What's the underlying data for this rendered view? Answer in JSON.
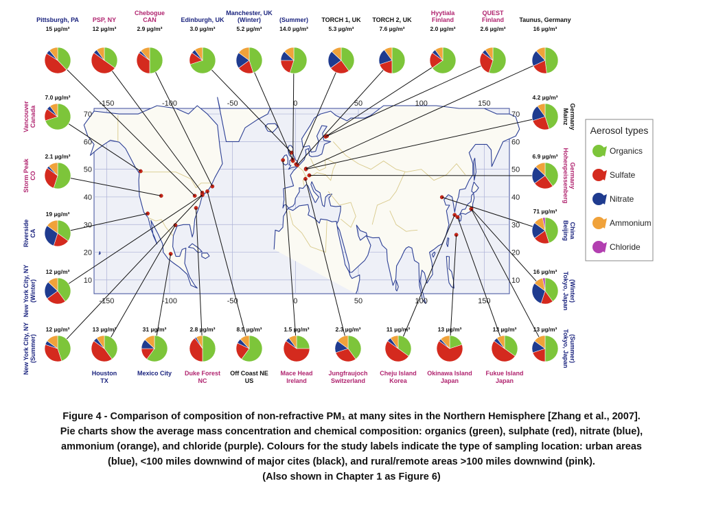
{
  "colors": {
    "organics": "#7dc53a",
    "sulfate": "#d42a1e",
    "nitrate": "#1f3b8f",
    "ammonium": "#f0a23a",
    "chloride": "#b23fb0",
    "urban": "#1a237e",
    "downwind": "#111111",
    "rural": "#b0246f",
    "map_bg": "#eef0f7",
    "coast": "#2b3e94",
    "border": "#d8c98a",
    "grid": "#aab0d6",
    "site": "#d62718"
  },
  "legend": {
    "title": "Aerosol types",
    "items": [
      {
        "key": "organics",
        "label": "Organics"
      },
      {
        "key": "sulfate",
        "label": "Sulfate"
      },
      {
        "key": "nitrate",
        "label": "Nitrate"
      },
      {
        "key": "ammonium",
        "label": "Ammonium"
      },
      {
        "key": "chloride",
        "label": "Chloride"
      }
    ]
  },
  "axes": {
    "top_lon": [
      "-150",
      "-100",
      "-50",
      "0",
      "50",
      "100",
      "150"
    ],
    "bottom_lon": [
      "-150",
      "-100",
      "-50",
      "0",
      "50",
      "100",
      "150"
    ],
    "left_lat": [
      "70",
      "60",
      "50",
      "40",
      "30",
      "20",
      "10"
    ],
    "right_lat": [
      "70",
      "60",
      "50",
      "40",
      "30",
      "20",
      "10"
    ]
  },
  "sites": [
    {
      "name": [
        "Pittsburgh, PA"
      ],
      "conc": "15 µg/m³",
      "type": "urban",
      "lon": -80,
      "lat": 40.4,
      "comp": [
        0.38,
        0.46,
        0.05,
        0.11,
        0
      ]
    },
    {
      "name": [
        "PSP, NY"
      ],
      "conc": "12 µg/m³",
      "type": "rural",
      "lon": -74,
      "lat": 41.5,
      "comp": [
        0.35,
        0.5,
        0.05,
        0.1,
        0
      ]
    },
    {
      "name": [
        "Chebogue",
        "CAN"
      ],
      "conc": "2.9 µg/m³",
      "type": "rural",
      "lon": -66,
      "lat": 43.8,
      "comp": [
        0.5,
        0.35,
        0.03,
        0.12,
        0
      ]
    },
    {
      "name": [
        "Edinburgh, UK"
      ],
      "conc": "3.0 µg/m³",
      "type": "urban",
      "lon": -3,
      "lat": 56,
      "comp": [
        0.7,
        0.15,
        0.05,
        0.1,
        0
      ]
    },
    {
      "name": [
        "Manchester, UK",
        "(Winter)"
      ],
      "conc": "5.2 µg/m³",
      "type": "urban",
      "lon": -2.2,
      "lat": 53.5,
      "comp": [
        0.45,
        0.2,
        0.2,
        0.15,
        0
      ]
    },
    {
      "name": [
        "(Summer)"
      ],
      "conc": "14.0 µg/m³",
      "type": "urban",
      "lon": -2,
      "lat": 53,
      "comp": [
        0.55,
        0.2,
        0.12,
        0.13,
        0
      ]
    },
    {
      "name": [
        "TORCH 1, UK"
      ],
      "conc": "5.3 µg/m³",
      "type": "downwind",
      "lon": 0.5,
      "lat": 51.8,
      "comp": [
        0.4,
        0.25,
        0.22,
        0.13,
        0
      ]
    },
    {
      "name": [
        "TORCH 2, UK"
      ],
      "conc": "7.6 µg/m³",
      "type": "downwind",
      "lon": 1.5,
      "lat": 51.5,
      "comp": [
        0.5,
        0.2,
        0.2,
        0.1,
        0
      ]
    },
    {
      "name": [
        "Hyytiala",
        "Finland"
      ],
      "conc": "2.0 µg/m³",
      "type": "rural",
      "lon": 24,
      "lat": 61.8,
      "comp": [
        0.65,
        0.2,
        0.05,
        0.1,
        0
      ]
    },
    {
      "name": [
        "QUEST",
        "Finland"
      ],
      "conc": "2.6 µg/m³",
      "type": "rural",
      "lon": 25,
      "lat": 62,
      "comp": [
        0.55,
        0.3,
        0.05,
        0.1,
        0
      ]
    },
    {
      "name": [
        "Taunus, Germany"
      ],
      "conc": "16 µg/m³",
      "type": "downwind",
      "lon": 8.4,
      "lat": 50.2,
      "comp": [
        0.48,
        0.2,
        0.2,
        0.12,
        0
      ]
    },
    {
      "name": [
        "Vancouver",
        "Canada"
      ],
      "conc": "7.0 µg/m³",
      "type": "rural",
      "lon": -123,
      "lat": 49.3,
      "comp": [
        0.7,
        0.15,
        0.05,
        0.1,
        0
      ]
    },
    {
      "name": [
        "Storm Peak",
        "CO"
      ],
      "conc": "2.1 µg/m³",
      "type": "rural",
      "lon": -106.7,
      "lat": 40.4,
      "comp": [
        0.55,
        0.3,
        0.03,
        0.12,
        0
      ]
    },
    {
      "name": [
        "Riverside",
        "CA"
      ],
      "conc": "19 µg/m³",
      "type": "urban",
      "lon": -117.4,
      "lat": 34,
      "comp": [
        0.35,
        0.2,
        0.3,
        0.15,
        0
      ]
    },
    {
      "name": [
        "New York City, NY",
        "(Winter)"
      ],
      "conc": "12 µg/m³",
      "type": "urban",
      "lon": -74,
      "lat": 40.7,
      "comp": [
        0.4,
        0.25,
        0.22,
        0.13,
        0
      ]
    },
    {
      "name": [
        "New York City, NY",
        "(Summer)"
      ],
      "conc": "12 µg/m³",
      "type": "urban",
      "lon": -73.9,
      "lat": 40.7,
      "comp": [
        0.45,
        0.35,
        0.05,
        0.15,
        0
      ]
    },
    {
      "name": [
        "Mainz",
        "Germany"
      ],
      "conc": "4.2 µg/m³",
      "type": "downwind",
      "lon": 8.3,
      "lat": 50,
      "comp": [
        0.45,
        0.25,
        0.2,
        0.1,
        0
      ]
    },
    {
      "name": [
        "Hohenpeissenberg",
        "Germany"
      ],
      "conc": "6.9 µg/m³",
      "type": "rural",
      "lon": 11,
      "lat": 47.8,
      "comp": [
        0.4,
        0.25,
        0.22,
        0.13,
        0
      ]
    },
    {
      "name": [
        "Beijing",
        "China"
      ],
      "conc": "71 µg/m³",
      "type": "urban",
      "lon": 116.4,
      "lat": 39.9,
      "comp": [
        0.45,
        0.2,
        0.2,
        0.12,
        0.03
      ]
    },
    {
      "name": [
        "Tokyo, Japan",
        "(Winter)"
      ],
      "conc": "16 µg/m³",
      "type": "urban",
      "lon": 139.7,
      "lat": 35.7,
      "comp": [
        0.4,
        0.15,
        0.3,
        0.12,
        0.03
      ]
    },
    {
      "name": [
        "Tokyo, Japan",
        "(Summer)"
      ],
      "conc": "13 µg/m³",
      "type": "urban",
      "lon": 139.7,
      "lat": 35.6,
      "comp": [
        0.5,
        0.2,
        0.15,
        0.15,
        0
      ]
    },
    {
      "name": [
        "Houston",
        "TX"
      ],
      "conc": "13 µg/m³",
      "type": "urban",
      "lon": -95.4,
      "lat": 29.8,
      "comp": [
        0.4,
        0.45,
        0.05,
        0.1,
        0
      ]
    },
    {
      "name": [
        "Mexico City"
      ],
      "conc": "31 µg/m³",
      "type": "urban",
      "lon": -99.1,
      "lat": 19.4,
      "comp": [
        0.6,
        0.15,
        0.12,
        0.13,
        0
      ]
    },
    {
      "name": [
        "Duke Forest",
        "NC"
      ],
      "conc": "2.8 µg/m³",
      "type": "rural",
      "lon": -79,
      "lat": 36,
      "comp": [
        0.5,
        0.4,
        0.02,
        0.08,
        0
      ]
    },
    {
      "name": [
        "Off Coast NE",
        "US"
      ],
      "conc": "8.5 µg/m³",
      "type": "downwind",
      "lon": -70,
      "lat": 42,
      "comp": [
        0.6,
        0.22,
        0.06,
        0.12,
        0
      ]
    },
    {
      "name": [
        "Mace Head",
        "Ireland"
      ],
      "conc": "1.5 µg/m³",
      "type": "rural",
      "lon": -9.9,
      "lat": 53.3,
      "comp": [
        0.25,
        0.6,
        0.05,
        0.1,
        0
      ]
    },
    {
      "name": [
        "Jungfraujoch",
        "Switzerland"
      ],
      "conc": "2.3 µg/m³",
      "type": "rural",
      "lon": 7.98,
      "lat": 46.5,
      "comp": [
        0.4,
        0.3,
        0.15,
        0.15,
        0
      ]
    },
    {
      "name": [
        "Cheju Island",
        "Korea"
      ],
      "conc": "11 µg/m³",
      "type": "rural",
      "lon": 126.5,
      "lat": 33.5,
      "comp": [
        0.35,
        0.5,
        0.05,
        0.1,
        0
      ]
    },
    {
      "name": [
        "Okinawa Island",
        "Japan"
      ],
      "conc": "13 µg/m³",
      "type": "rural",
      "lon": 127.8,
      "lat": 26.3,
      "comp": [
        0.2,
        0.65,
        0.03,
        0.12,
        0
      ]
    },
    {
      "name": [
        "Fukue Island",
        "Japan"
      ],
      "conc": "13 µg/m³",
      "type": "rural",
      "lon": 128.8,
      "lat": 32.7,
      "comp": [
        0.35,
        0.5,
        0.05,
        0.1,
        0
      ]
    }
  ],
  "caption": {
    "line1": "Figure 4 - Comparison of composition of non-refractive PM₁ at many sites in the Northern Hemisphere [Zhang et al., 2007].",
    "line2": "Pie charts show the average mass concentration and chemical composition: organics (green), sulphate (red), nitrate (blue),",
    "line3": "ammonium (orange), and chloride (purple). Colours for the study labels indicate the type of sampling location: urban areas",
    "line4": "(blue), <100 miles downwind of major cites (black), and rural/remote areas >100 miles downwind (pink).",
    "line5": "(Also shown in Chapter 1 as Figure 6)"
  }
}
